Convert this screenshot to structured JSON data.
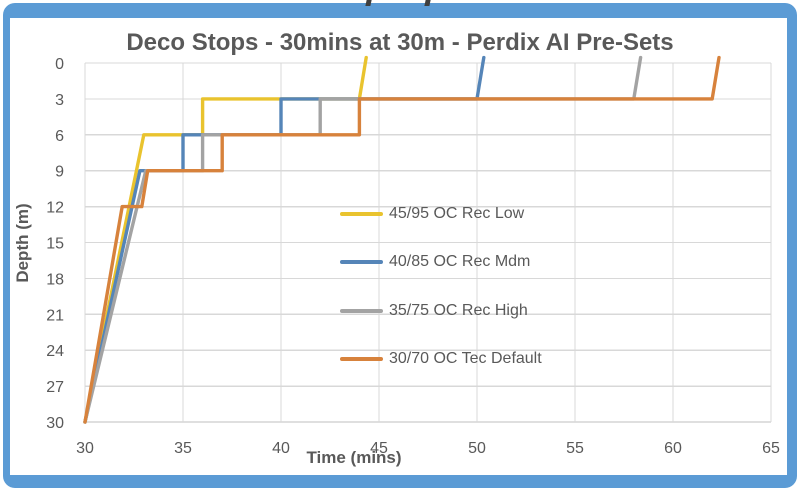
{
  "frame": {
    "border_color": "#5B9BD5"
  },
  "chart_data": {
    "type": "line",
    "title": "Deco Stops - 30mins at 30m - Perdix AI Pre-Sets",
    "xlabel": "Time (mins)",
    "ylabel": "Depth (m)",
    "xlim": [
      30,
      65
    ],
    "ylim": [
      0,
      30
    ],
    "y_inverted_depth_axis": true,
    "x_ticks": [
      30,
      35,
      40,
      45,
      50,
      55,
      60,
      65
    ],
    "y_ticks": [
      0,
      3,
      6,
      9,
      12,
      15,
      18,
      21,
      24,
      27,
      30
    ],
    "grid": true,
    "grid_color": "#D8D8D8",
    "axis_line_color": "#BFBFBF",
    "text_color": "#595959",
    "legend_position": "inside-center-left",
    "series": [
      {
        "name": "45/95 OC Rec Low",
        "color": "#E9C32E",
        "points": [
          [
            30,
            30
          ],
          [
            33,
            6
          ],
          [
            36,
            6
          ],
          [
            36,
            3
          ],
          [
            44,
            3
          ],
          [
            44.3,
            0
          ]
        ]
      },
      {
        "name": "40/85 OC Rec Mdm",
        "color": "#5585B8",
        "points": [
          [
            30,
            30
          ],
          [
            32.8,
            9
          ],
          [
            35,
            9
          ],
          [
            35,
            6
          ],
          [
            40,
            6
          ],
          [
            40,
            3
          ],
          [
            50,
            3
          ],
          [
            50.3,
            0
          ]
        ]
      },
      {
        "name": "35/75 OC Rec High",
        "color": "#A3A3A3",
        "points": [
          [
            30,
            30
          ],
          [
            33.1,
            9
          ],
          [
            36,
            9
          ],
          [
            36,
            6
          ],
          [
            42,
            6
          ],
          [
            42,
            3
          ],
          [
            58,
            3
          ],
          [
            58.3,
            0
          ]
        ]
      },
      {
        "name": "30/70 OC Tec Default",
        "color": "#D7823C",
        "points": [
          [
            30,
            30
          ],
          [
            31.9,
            12
          ],
          [
            32.9,
            12
          ],
          [
            33.2,
            9
          ],
          [
            37,
            9
          ],
          [
            37,
            6
          ],
          [
            44,
            6
          ],
          [
            44,
            3
          ],
          [
            62,
            3
          ],
          [
            62.3,
            0
          ]
        ]
      }
    ]
  }
}
